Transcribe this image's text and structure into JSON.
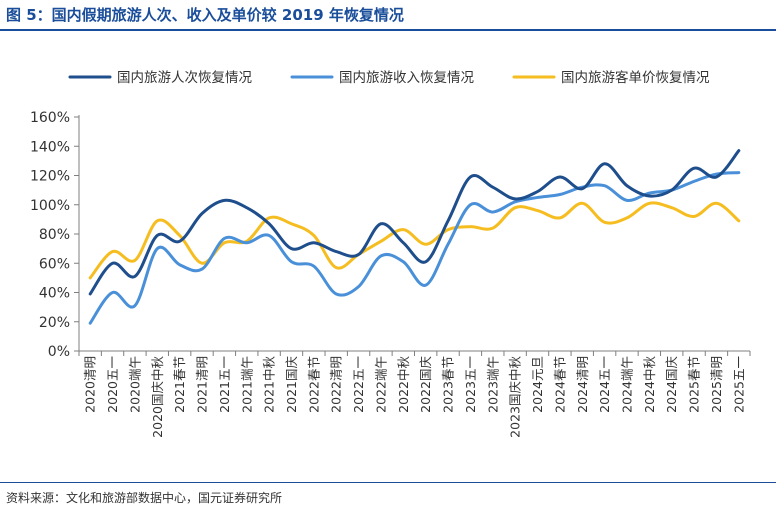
{
  "figure": {
    "title": "图 5：国内假期旅游人次、收入及单价较 2019 年恢复情况",
    "source": "资料来源：文化和旅游部数据中心，国元证券研究所"
  },
  "chart_data": {
    "type": "line",
    "title": "",
    "xlabel": "",
    "ylabel": "",
    "ylim": [
      0,
      1.6
    ],
    "y_ticks": [
      "0%",
      "20%",
      "40%",
      "60%",
      "80%",
      "100%",
      "120%",
      "140%",
      "160%"
    ],
    "legend_placement": "top",
    "grid": false,
    "categories": [
      "2020清明",
      "2020五一",
      "2020端午",
      "2020国庆中秋",
      "2021春节",
      "2021清明",
      "2021五一",
      "2021端午",
      "2021中秋",
      "2021国庆",
      "2022春节",
      "2022清明",
      "2022五一",
      "2022端午",
      "2022中秋",
      "2022国庆",
      "2023春节",
      "2023五一",
      "2023端午",
      "2023国庆中秋",
      "2024元旦",
      "2024春节",
      "2024清明",
      "2024五一",
      "2024端午",
      "2024中秋",
      "2024国庆",
      "2025春节",
      "2025清明",
      "2025五一"
    ],
    "series": [
      {
        "name": "国内旅游人次恢复情况",
        "color": "#1f4e8c",
        "values": [
          0.39,
          0.6,
          0.51,
          0.79,
          0.75,
          0.94,
          1.03,
          0.98,
          0.87,
          0.7,
          0.74,
          0.68,
          0.66,
          0.87,
          0.74,
          0.61,
          0.89,
          1.19,
          1.12,
          1.04,
          1.09,
          1.19,
          1.11,
          1.28,
          1.13,
          1.06,
          1.1,
          1.25,
          1.19,
          1.37
        ]
      },
      {
        "name": "国内旅游收入恢复情况",
        "color": "#4a90d9",
        "values": [
          0.19,
          0.4,
          0.31,
          0.7,
          0.59,
          0.56,
          0.77,
          0.74,
          0.79,
          0.61,
          0.58,
          0.39,
          0.44,
          0.65,
          0.61,
          0.45,
          0.73,
          1.0,
          0.95,
          1.02,
          1.05,
          1.07,
          1.12,
          1.13,
          1.03,
          1.08,
          1.1,
          1.16,
          1.21,
          1.22
        ]
      },
      {
        "name": "国内旅游客单价恢复情况",
        "color": "#f5bd1f",
        "values": [
          0.5,
          0.68,
          0.62,
          0.89,
          0.79,
          0.6,
          0.74,
          0.75,
          0.91,
          0.87,
          0.79,
          0.57,
          0.66,
          0.75,
          0.83,
          0.73,
          0.83,
          0.85,
          0.84,
          0.98,
          0.96,
          0.91,
          1.01,
          0.88,
          0.91,
          1.01,
          0.98,
          0.92,
          1.01,
          0.89
        ]
      }
    ]
  }
}
